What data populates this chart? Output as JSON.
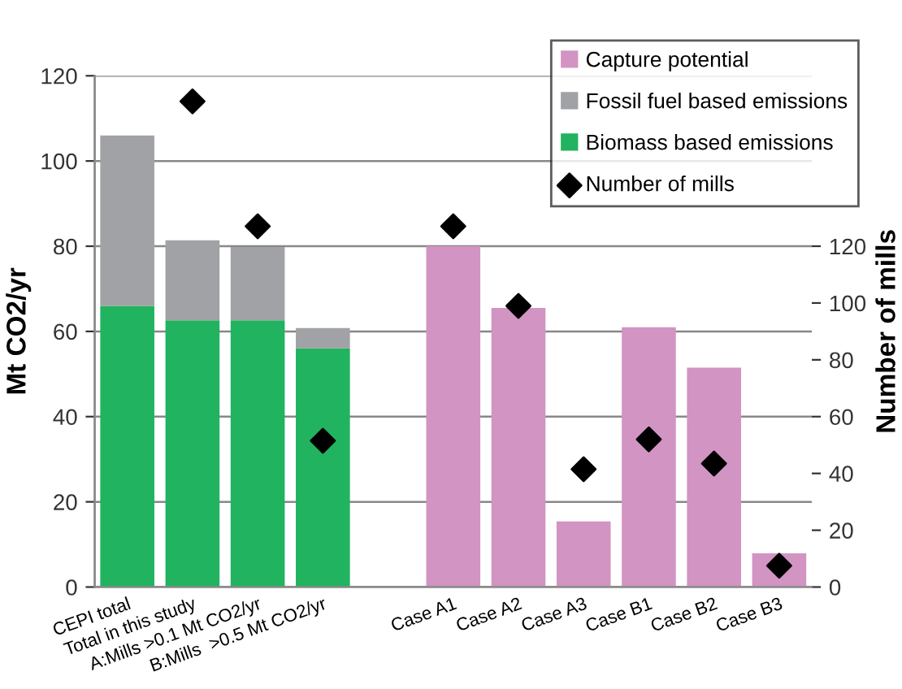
{
  "chart_data": {
    "type": "bar",
    "stacked": true,
    "ylabel": "Mt CO2/yr",
    "y2label": "Number of mills",
    "categories": [
      "CEPI total",
      "Total in this study",
      "A:Mills >0.1 Mt CO2/yr",
      "B:Mills  >0.5 Mt CO2/yr",
      null,
      "Case A1",
      "Case A2",
      "Case A3",
      "Case B1",
      "Case B2",
      "Case B3"
    ],
    "series": [
      {
        "name": "Biomass based emissions",
        "color": "#21b35f",
        "values": [
          66,
          62.6,
          62.6,
          56,
          null,
          null,
          null,
          null,
          null,
          null,
          null
        ]
      },
      {
        "name": "Fossil fuel based emissions",
        "color": "#a0a2a5",
        "values": [
          40,
          18.8,
          17.2,
          4.8,
          null,
          null,
          null,
          null,
          null,
          null,
          null
        ]
      },
      {
        "name": "Capture potential",
        "color": "#d294c2",
        "values": [
          null,
          null,
          null,
          null,
          null,
          80,
          65.5,
          15.4,
          61,
          51.5,
          7.9
        ]
      },
      {
        "name": "Number of mills",
        "type": "scatter",
        "axis": "y2",
        "color": "#000000",
        "marker": "diamond",
        "values": [
          null,
          171,
          127,
          51.5,
          null,
          127,
          99,
          41.5,
          52,
          43.5,
          7.5
        ]
      }
    ],
    "ylim": [
      0,
      120
    ],
    "yticks": [
      0,
      20,
      40,
      60,
      80,
      100,
      120
    ],
    "y2lim": [
      0,
      180
    ],
    "y2ticks": [
      0,
      20,
      40,
      60,
      80,
      100,
      120
    ],
    "grid": "y",
    "legend": "top right"
  }
}
